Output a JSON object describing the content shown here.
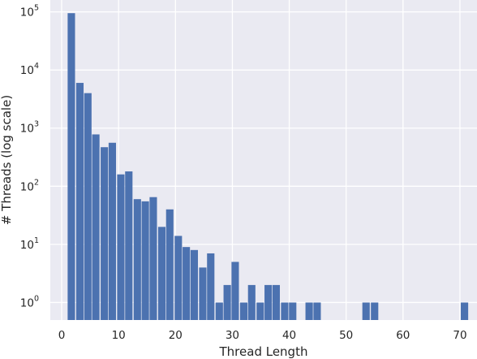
{
  "chart_data": {
    "type": "bar",
    "xlabel": "Thread Length",
    "ylabel": "# Threads (log scale)",
    "yscale": "log",
    "xlim": [
      -2,
      73
    ],
    "ylim": [
      0.5,
      160000
    ],
    "grid": true,
    "background_color": "#eaeaf2",
    "grid_color": "#ffffff",
    "bar_color": "#4c72b0",
    "bar_width": 1.3,
    "x_ticks": [
      0,
      10,
      20,
      30,
      40,
      50,
      60,
      70
    ],
    "x_tick_labels": [
      "0",
      "10",
      "20",
      "30",
      "40",
      "50",
      "60",
      "70"
    ],
    "y_ticks": [
      1,
      10,
      100,
      1000,
      10000,
      100000
    ],
    "y_tick_labels": [
      {
        "base": "10",
        "exp": "0"
      },
      {
        "base": "10",
        "exp": "1"
      },
      {
        "base": "10",
        "exp": "2"
      },
      {
        "base": "10",
        "exp": "3"
      },
      {
        "base": "10",
        "exp": "4"
      },
      {
        "base": "10",
        "exp": "5"
      }
    ],
    "x": [
      1.7,
      3.2,
      4.6,
      6.0,
      7.5,
      8.9,
      10.4,
      11.8,
      13.3,
      14.7,
      16.1,
      17.6,
      19.0,
      20.5,
      21.9,
      23.3,
      24.8,
      26.2,
      27.7,
      29.1,
      30.5,
      32.0,
      33.4,
      34.9,
      36.3,
      37.7,
      39.2,
      40.6,
      43.5,
      44.9,
      53.5,
      55.0,
      70.8
    ],
    "values": [
      95000,
      6000,
      4000,
      780,
      470,
      560,
      160,
      180,
      60,
      55,
      65,
      20,
      40,
      14,
      9,
      8,
      4,
      7,
      1,
      2,
      5,
      1,
      2,
      1,
      2,
      2,
      1,
      1,
      1,
      1,
      1,
      1,
      1
    ]
  }
}
